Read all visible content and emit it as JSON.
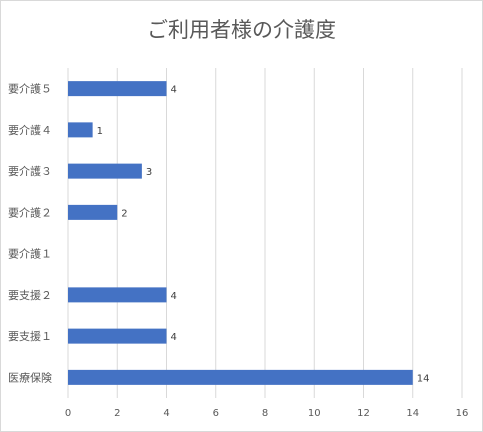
{
  "chart_data": {
    "type": "bar",
    "orientation": "horizontal",
    "title": "ご利用者様の介護度",
    "categories": [
      "医療保険",
      "要支援１",
      "要支援２",
      "要介護１",
      "要介護２",
      "要介護３",
      "要介護４",
      "要介護５"
    ],
    "values": [
      14,
      4,
      4,
      0,
      2,
      3,
      1,
      4
    ],
    "data_labels": [
      "14",
      "4",
      "4",
      "",
      "2",
      "3",
      "1",
      "4"
    ],
    "xlim": [
      0,
      16
    ],
    "xticks": [
      "0",
      "2",
      "4",
      "6",
      "8",
      "10",
      "12",
      "14",
      "16"
    ],
    "grid": true,
    "bar_color": "#4472C4"
  }
}
